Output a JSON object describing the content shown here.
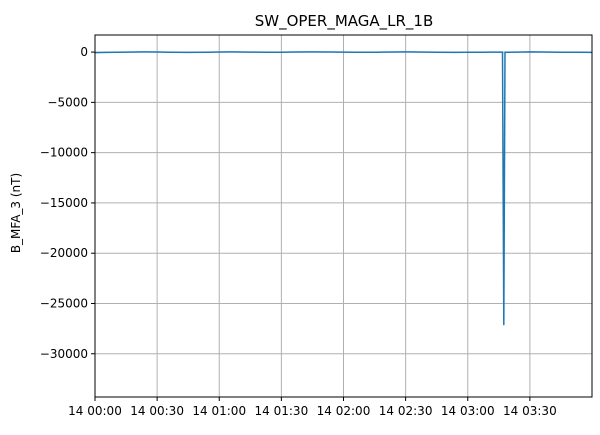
{
  "chart_data": {
    "type": "line",
    "title": "SW_OPER_MAGA_LR_1B",
    "xlabel": "",
    "ylabel": "B_MFA_3 (nT)",
    "x_unit": "hours from 14 00:00",
    "xlim": [
      0,
      4.0
    ],
    "ylim": [
      -34300,
      1700
    ],
    "x_ticks": [
      {
        "value": 0.0,
        "label": "14 00:00"
      },
      {
        "value": 0.5,
        "label": "14 00:30"
      },
      {
        "value": 1.0,
        "label": "14 01:00"
      },
      {
        "value": 1.5,
        "label": "14 01:30"
      },
      {
        "value": 2.0,
        "label": "14 02:00"
      },
      {
        "value": 2.5,
        "label": "14 02:30"
      },
      {
        "value": 3.0,
        "label": "14 03:00"
      },
      {
        "value": 3.5,
        "label": "14 03:30"
      }
    ],
    "y_ticks": [
      {
        "value": 0,
        "label": "0"
      },
      {
        "value": -5000,
        "label": "−5000"
      },
      {
        "value": -10000,
        "label": "−10000"
      },
      {
        "value": -15000,
        "label": "−15000"
      },
      {
        "value": -20000,
        "label": "−20000"
      },
      {
        "value": -25000,
        "label": "−25000"
      },
      {
        "value": -30000,
        "label": "−30000"
      }
    ],
    "grid": true,
    "series": [
      {
        "color": "#1f77b4",
        "x": [
          0.0,
          0.1,
          0.25,
          0.4,
          0.5,
          0.6,
          0.75,
          0.9,
          1.0,
          1.1,
          1.25,
          1.4,
          1.5,
          1.6,
          1.75,
          1.9,
          2.0,
          2.1,
          2.25,
          2.4,
          2.5,
          2.6,
          2.75,
          2.9,
          3.0,
          3.1,
          3.2,
          3.28,
          3.29,
          3.3,
          3.4,
          3.5,
          3.6,
          3.75,
          3.9,
          4.0
        ],
        "y": [
          -50,
          -30,
          0,
          20,
          10,
          -10,
          -30,
          -10,
          10,
          20,
          0,
          -20,
          -10,
          10,
          20,
          10,
          0,
          -20,
          -10,
          10,
          20,
          10,
          -10,
          -30,
          -20,
          -10,
          0,
          0,
          -27100,
          -20,
          0,
          20,
          10,
          -10,
          -20,
          -30
        ]
      }
    ]
  }
}
